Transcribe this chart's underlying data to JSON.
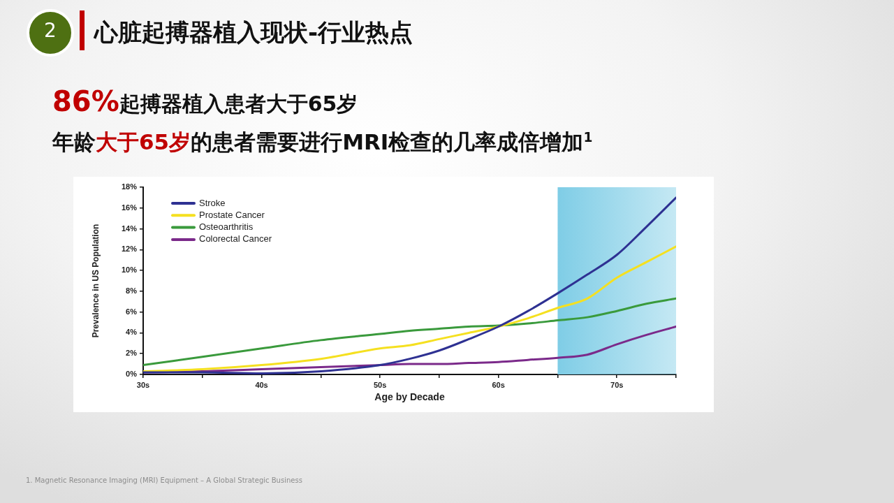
{
  "chart_data": {
    "type": "line",
    "title": "心脏起搏器植入现状-行业热点",
    "annotations": [
      "2",
      "86%",
      "起搏器植入患者大于65岁",
      "年龄",
      "大于65岁",
      "的患者需要进行MRI检查的几率成倍增加$^{1}$",
      "1. Magnetic Resonance Imaging (MRI) Equipment – A Global Strategic Business"
    ],
    "xlabel": "Age by Decade",
    "ylabel": "Prevalence in US Population",
    "x": [
      30,
      35,
      40,
      45,
      50,
      52.5,
      55,
      57.5,
      60,
      62.5,
      65,
      67.5,
      70,
      72.5,
      75
    ],
    "series": [
      {
        "name": "Stroke",
        "color": "#2e3192",
        "values": [
          0.2,
          0.2,
          0.1,
          0.3,
          0.9,
          1.5,
          2.3,
          3.4,
          4.6,
          6.1,
          7.8,
          9.6,
          11.5,
          14.2,
          17.0
        ]
      },
      {
        "name": "Prostate Cancer",
        "color": "#f5e020",
        "values": [
          0.3,
          0.5,
          0.9,
          1.5,
          2.5,
          2.8,
          3.4,
          4.0,
          4.6,
          5.4,
          6.4,
          7.3,
          9.3,
          10.8,
          12.3
        ]
      },
      {
        "name": "Osteoarthritis",
        "color": "#3a9a3c",
        "values": [
          0.9,
          1.7,
          2.5,
          3.3,
          3.9,
          4.2,
          4.4,
          4.6,
          4.7,
          4.9,
          5.2,
          5.5,
          6.1,
          6.8,
          7.3
        ]
      },
      {
        "name": "Colorectal Cancer",
        "color": "#7b2a8a",
        "values": [
          0.2,
          0.3,
          0.5,
          0.7,
          0.9,
          1.0,
          1.0,
          1.1,
          1.2,
          1.4,
          1.6,
          1.9,
          2.9,
          3.8,
          4.6
        ]
      }
    ],
    "xlim": [
      30,
      75
    ],
    "xticks": [
      {
        "value": 30,
        "label": "30s"
      },
      {
        "value": 35,
        "label": null
      },
      {
        "value": 40,
        "label": "40s"
      },
      {
        "value": 45,
        "label": null
      },
      {
        "value": 50,
        "label": "50s"
      },
      {
        "value": 55,
        "label": null
      },
      {
        "value": 60,
        "label": "60s"
      },
      {
        "value": 65,
        "label": null
      },
      {
        "value": 70,
        "label": "70s"
      },
      {
        "value": 75,
        "label": null
      }
    ],
    "ylim": [
      0,
      18
    ],
    "yticks": [
      {
        "value": 0,
        "label": "0%"
      },
      {
        "value": 2,
        "label": "2%"
      },
      {
        "value": 4,
        "label": "4%"
      },
      {
        "value": 6,
        "label": "6%"
      },
      {
        "value": 8,
        "label": "8%"
      },
      {
        "value": 10,
        "label": "10%"
      },
      {
        "value": 12,
        "label": "12%"
      },
      {
        "value": 14,
        "label": "14%"
      },
      {
        "value": 16,
        "label": "16%"
      },
      {
        "value": 18,
        "label": "18%"
      }
    ],
    "bands": [
      {
        "axis": "x",
        "from": 65,
        "to": 75,
        "color": "#7fcde6"
      }
    ],
    "legend": "top left"
  }
}
